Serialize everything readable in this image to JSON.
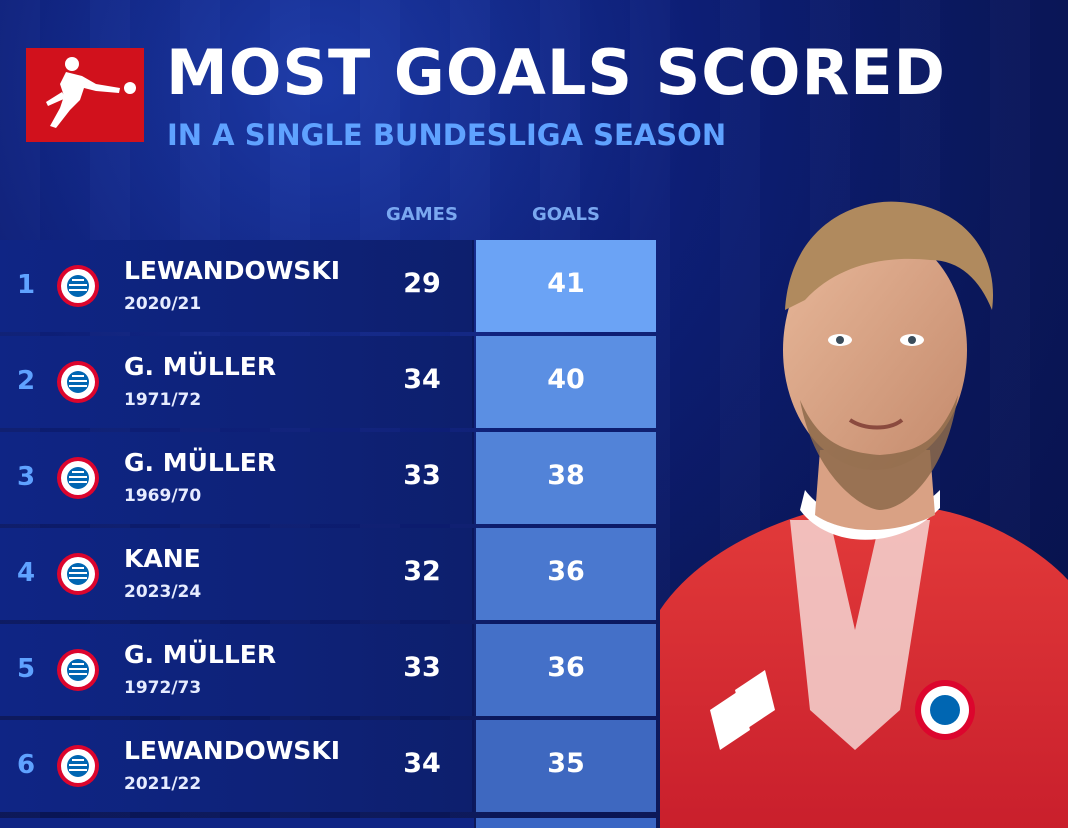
{
  "header": {
    "title": "MOST GOALS SCORED",
    "subtitle": "IN A SINGLE BUNDESLIGA SEASON",
    "logo_icon": "bundesliga-logo"
  },
  "columns": {
    "games": "GAMES",
    "goals": "GOALS"
  },
  "colors": {
    "background": "#0d1f78",
    "logo_red": "#d1111c",
    "accent_blue": "#5fa2ff",
    "goals_shades": [
      "#6ba3f5",
      "#5b8fe3",
      "#5283d8",
      "#4a78cf",
      "#4470c8",
      "#3e68c0"
    ]
  },
  "rows": [
    {
      "rank": "1",
      "name": "LEWANDOWSKI",
      "season": "2020/21",
      "games": "29",
      "goals": "41",
      "crest_icon": "fc-bayern-crest"
    },
    {
      "rank": "2",
      "name": "G. MÜLLER",
      "season": "1971/72",
      "games": "34",
      "goals": "40",
      "crest_icon": "fc-bayern-crest"
    },
    {
      "rank": "3",
      "name": "G. MÜLLER",
      "season": "1969/70",
      "games": "33",
      "goals": "38",
      "crest_icon": "fc-bayern-crest"
    },
    {
      "rank": "4",
      "name": "KANE",
      "season": "2023/24",
      "games": "32",
      "goals": "36",
      "crest_icon": "fc-bayern-crest"
    },
    {
      "rank": "5",
      "name": "G. MÜLLER",
      "season": "1972/73",
      "games": "33",
      "goals": "36",
      "crest_icon": "fc-bayern-crest"
    },
    {
      "rank": "6",
      "name": "LEWANDOWSKI",
      "season": "2021/22",
      "games": "34",
      "goals": "35",
      "crest_icon": "fc-bayern-crest"
    }
  ],
  "photo": {
    "icon": "player-photo"
  }
}
